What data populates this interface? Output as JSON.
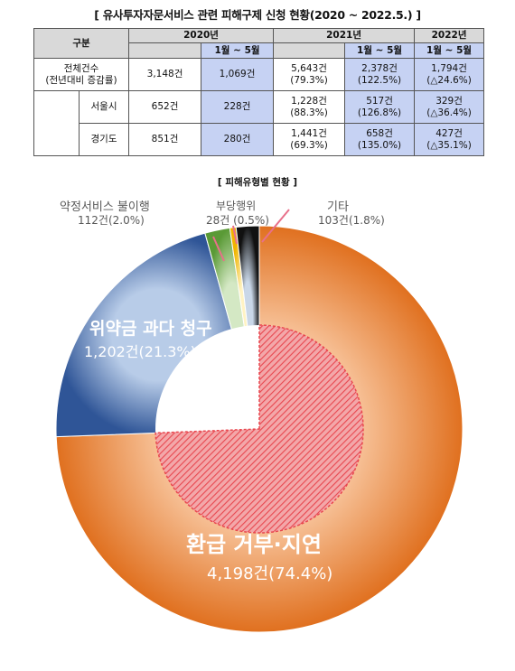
{
  "title": "[ 유사투자자문서비스 관련 피해구제 신청 현황(2020 ~ 2022.5.) ]",
  "table": {
    "corner": "구분",
    "years": [
      "2020년",
      "2021년",
      "2022년"
    ],
    "period": "1월 ~ 5월",
    "rows": [
      {
        "label": "전체건수\n(전년대비 증감률)",
        "y2020": "3,148건",
        "y2020p": "1,069건",
        "y2021": "5,643건\n(79.3%)",
        "y2021p": "2,378건\n(122.5%)",
        "y2022p": "1,794건\n(△24.6%)"
      },
      {
        "label": "서울시",
        "y2020": "652건",
        "y2020p": "228건",
        "y2021": "1,228건\n(88.3%)",
        "y2021p": "517건\n(126.8%)",
        "y2022p": "329건\n(△36.4%)"
      },
      {
        "label": "경기도",
        "y2020": "851건",
        "y2020p": "280건",
        "y2021": "1,441건\n(69.3%)",
        "y2021p": "658건\n(135.0%)",
        "y2022p": "427건\n(△35.1%)"
      }
    ]
  },
  "chart_data": {
    "type": "pie",
    "title": "[ 피해유형별 현황 ]",
    "slices": [
      {
        "name": "환급 거부·지연",
        "value": 4198,
        "label": "4,198건(74.4%)",
        "percent": 74.4,
        "color": "#ed7d31"
      },
      {
        "name": "위약금 과다 청구",
        "value": 1202,
        "label": "1,202건(21.3%)",
        "percent": 21.3,
        "color": "#2f5597"
      },
      {
        "name": "약정서비스 불이행",
        "value": 112,
        "label": "112건(2.0%)",
        "percent": 2.0,
        "color": "#70ad47"
      },
      {
        "name": "부당행위",
        "value": 28,
        "label": "28건 (0.5%)",
        "percent": 0.5,
        "color": "#ffc000"
      },
      {
        "name": "기타",
        "value": 103,
        "label": "103건(1.8%)",
        "percent": 1.8,
        "color": "#1a1a1a"
      }
    ],
    "highlight_color": "#e8474f",
    "label_color_light": "#ffffff",
    "label_color_muted": "#595959"
  }
}
